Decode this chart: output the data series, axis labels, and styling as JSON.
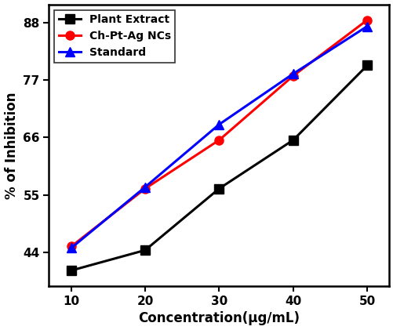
{
  "x": [
    10,
    20,
    30,
    40,
    50
  ],
  "plant_extract": [
    40.5,
    44.4,
    56.2,
    65.5,
    79.8
  ],
  "ch_pt_ag": [
    45.1,
    56.2,
    65.5,
    77.8,
    88.5
  ],
  "standard": [
    44.8,
    56.5,
    68.5,
    78.2,
    87.3
  ],
  "plant_color": "#000000",
  "ch_pt_ag_color": "#ff0000",
  "standard_color": "#0000ff",
  "plant_label": "Plant Extract",
  "ch_pt_ag_label": "Ch-Pt-Ag NCs",
  "standard_label": "Standard",
  "xlabel": "Concentration(μg/mL)",
  "ylabel": "% of Inhibition",
  "yticks": [
    44,
    55,
    66,
    77,
    88
  ],
  "xticks": [
    10,
    20,
    30,
    40,
    50
  ],
  "ylim": [
    37.5,
    91.5
  ],
  "xlim": [
    7,
    53
  ],
  "linewidth": 2.2,
  "markersize": 8
}
